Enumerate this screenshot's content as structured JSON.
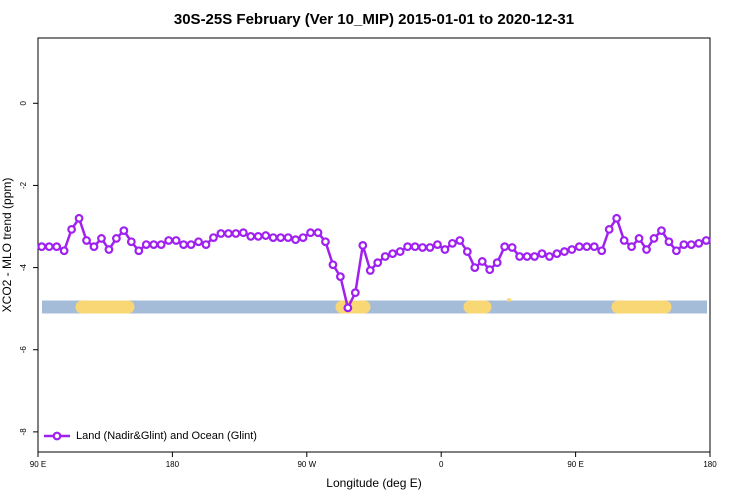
{
  "chart_data": {
    "type": "line",
    "title": "30S-25S February (Ver 10_MIP)   2015-01-01 to 2020-12-31",
    "x_label": "Longitude (deg E)",
    "y_label": "XCO2 - MLO trend (ppm)",
    "xlim": [
      90,
      540
    ],
    "xticks": [
      {
        "value": 90,
        "label": "90 E"
      },
      180,
      {
        "value": 270,
        "label": "90 W"
      },
      {
        "value": 360,
        "label": "0"
      },
      {
        "value": 450,
        "label": "90 E"
      },
      {
        "value": 540,
        "label": "180"
      }
    ],
    "ylim": [
      -8.49,
      1.59
    ],
    "yticks": [
      0,
      -2,
      -4,
      -6,
      -8
    ],
    "legend": "bottom-left",
    "x": [
      92.5,
      97.5,
      102.5,
      107.5,
      112.5,
      117.5,
      122.5,
      127.5,
      132.5,
      137.5,
      142.5,
      147.5,
      152.5,
      157.5,
      162.5,
      167.5,
      172.5,
      177.5,
      182.5,
      187.5,
      192.5,
      197.5,
      202.5,
      207.5,
      212.5,
      217.5,
      222.5,
      227.5,
      232.5,
      237.5,
      242.5,
      247.5,
      252.5,
      257.5,
      262.5,
      267.5,
      272.5,
      277.5,
      282.5,
      287.5,
      292.5,
      297.5,
      302.5,
      307.5,
      312.5,
      317.5,
      322.5,
      327.5,
      332.5,
      337.5,
      342.5,
      347.5,
      352.5,
      357.5,
      362.5,
      367.5,
      372.5,
      377.5,
      382.5,
      387.5,
      392.5,
      397.5,
      402.5,
      407.5,
      412.5,
      417.5,
      422.5,
      427.5,
      432.5,
      437.5,
      442.5,
      447.5,
      452.5,
      457.5,
      462.5,
      467.5,
      472.5,
      477.5,
      482.5,
      487.5,
      492.5,
      497.5,
      502.5,
      507.5,
      512.5,
      517.5,
      522.5,
      527.5,
      532.5,
      537.5
    ],
    "series": [
      {
        "name": "Land (Nadir&Glint) and Ocean (Glint)",
        "color": "#a020f0",
        "values": [
          -3.49,
          -3.49,
          -3.49,
          -3.59,
          -3.07,
          -2.8,
          -3.34,
          -3.49,
          -3.29,
          -3.56,
          -3.29,
          -3.1,
          -3.37,
          -3.59,
          -3.44,
          -3.44,
          -3.44,
          -3.34,
          -3.34,
          -3.44,
          -3.44,
          -3.37,
          -3.44,
          -3.27,
          -3.17,
          -3.17,
          -3.17,
          -3.15,
          -3.24,
          -3.24,
          -3.22,
          -3.27,
          -3.27,
          -3.27,
          -3.32,
          -3.27,
          -3.15,
          -3.15,
          -3.37,
          -3.93,
          -4.22,
          -4.98,
          -4.61,
          -3.46,
          -4.07,
          -3.88,
          -3.73,
          -3.66,
          -3.61,
          -3.49,
          -3.49,
          -3.51,
          -3.51,
          -3.44,
          -3.56,
          -3.41,
          -3.34,
          -3.61,
          -4.0,
          -3.85,
          -4.05,
          -3.88,
          -3.49,
          -3.51,
          -3.73,
          -3.73,
          -3.73,
          -3.66,
          -3.73,
          -3.66,
          -3.61,
          -3.56,
          -3.49,
          -3.49,
          -3.49,
          -3.59,
          -3.07,
          -2.8,
          -3.34,
          -3.49,
          -3.29,
          -3.56,
          -3.29,
          -3.1,
          -3.37,
          -3.59,
          -3.44,
          -3.44,
          -3.41,
          -3.34
        ]
      }
    ]
  }
}
